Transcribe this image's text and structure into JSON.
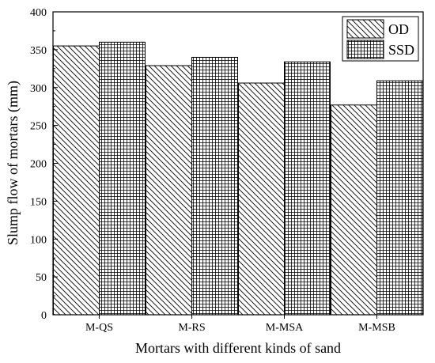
{
  "chart_data": {
    "type": "bar",
    "categories": [
      "M-QS",
      "M-RS",
      "M-MSA",
      "M-MSB"
    ],
    "series": [
      {
        "name": "OD",
        "values": [
          355,
          329,
          306,
          277
        ],
        "pattern": "diagonal-hatch"
      },
      {
        "name": "SSD",
        "values": [
          360,
          340,
          334,
          309
        ],
        "pattern": "grid-hatch"
      }
    ],
    "xlabel": "Mortars with different kinds of sand",
    "ylabel": "Slump flow of mortars (mm)",
    "ylim": [
      0,
      400
    ],
    "yticks": [
      "0",
      "50",
      "100",
      "150",
      "200",
      "250",
      "300",
      "350",
      "400"
    ],
    "grid": false,
    "legend_position": "top-right",
    "colors": {
      "stroke": "#000000",
      "background": "#ffffff"
    }
  }
}
